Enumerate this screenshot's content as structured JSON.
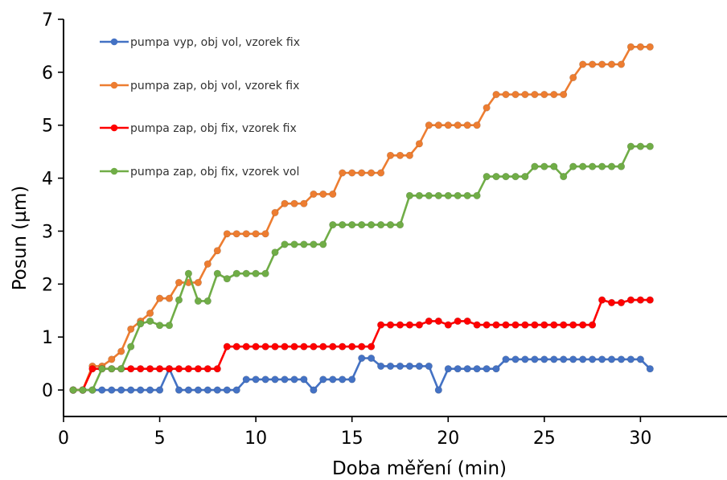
{
  "chart_data": {
    "type": "line",
    "xlabel": "Doba měření (min)",
    "ylabel": "Posun (µm)",
    "xlim": [
      0,
      34.5
    ],
    "ylim": [
      -0.5,
      7
    ],
    "xticks": [
      0,
      5,
      10,
      15,
      20,
      25,
      30
    ],
    "yticks": [
      0,
      1,
      2,
      3,
      4,
      5,
      6,
      7
    ],
    "grid": false,
    "legend_position": "top-left",
    "series": [
      {
        "name": "pumpa vyp, obj vol, vzorek fix",
        "color": "#4472c4",
        "points": [
          [
            0.5,
            0
          ],
          [
            1,
            0
          ],
          [
            1.5,
            0
          ],
          [
            2,
            0
          ],
          [
            2.5,
            0
          ],
          [
            3,
            0
          ],
          [
            3.5,
            0
          ],
          [
            4,
            0
          ],
          [
            4.5,
            0
          ],
          [
            5,
            0
          ],
          [
            5.5,
            0.4
          ],
          [
            6,
            0
          ],
          [
            6.5,
            0
          ],
          [
            7,
            0
          ],
          [
            7.5,
            0
          ],
          [
            8,
            0
          ],
          [
            8.5,
            0
          ],
          [
            9,
            0
          ],
          [
            9.5,
            0.2
          ],
          [
            10,
            0.2
          ],
          [
            10.5,
            0.2
          ],
          [
            11,
            0.2
          ],
          [
            11.5,
            0.2
          ],
          [
            12,
            0.2
          ],
          [
            12.5,
            0.2
          ],
          [
            13,
            0
          ],
          [
            13.5,
            0.2
          ],
          [
            14,
            0.2
          ],
          [
            14.5,
            0.2
          ],
          [
            15,
            0.2
          ],
          [
            15.5,
            0.6
          ],
          [
            16,
            0.6
          ],
          [
            16.5,
            0.45
          ],
          [
            17,
            0.45
          ],
          [
            17.5,
            0.45
          ],
          [
            18,
            0.45
          ],
          [
            18.5,
            0.45
          ],
          [
            19,
            0.45
          ],
          [
            19.5,
            0
          ],
          [
            20,
            0.4
          ],
          [
            20.5,
            0.4
          ],
          [
            21,
            0.4
          ],
          [
            21.5,
            0.4
          ],
          [
            22,
            0.4
          ],
          [
            22.5,
            0.4
          ],
          [
            23,
            0.58
          ],
          [
            23.5,
            0.58
          ],
          [
            24,
            0.58
          ],
          [
            24.5,
            0.58
          ],
          [
            25,
            0.58
          ],
          [
            25.5,
            0.58
          ],
          [
            26,
            0.58
          ],
          [
            26.5,
            0.58
          ],
          [
            27,
            0.58
          ],
          [
            27.5,
            0.58
          ],
          [
            28,
            0.58
          ],
          [
            28.5,
            0.58
          ],
          [
            29,
            0.58
          ],
          [
            29.5,
            0.58
          ],
          [
            30,
            0.58
          ],
          [
            30.5,
            0.4
          ]
        ]
      },
      {
        "name": "pumpa zap, obj vol, vzorek fix",
        "color": "#ed7d31",
        "points": [
          [
            0.5,
            0
          ],
          [
            1,
            0
          ],
          [
            1.5,
            0.45
          ],
          [
            2,
            0.45
          ],
          [
            2.5,
            0.58
          ],
          [
            3,
            0.73
          ],
          [
            3.5,
            1.15
          ],
          [
            4,
            1.3
          ],
          [
            4.5,
            1.45
          ],
          [
            5,
            1.73
          ],
          [
            5.5,
            1.73
          ],
          [
            6,
            2.03
          ],
          [
            6.5,
            2.03
          ],
          [
            7,
            2.03
          ],
          [
            7.5,
            2.38
          ],
          [
            8,
            2.63
          ],
          [
            8.5,
            2.95
          ],
          [
            9,
            2.95
          ],
          [
            9.5,
            2.95
          ],
          [
            10,
            2.95
          ],
          [
            10.5,
            2.95
          ],
          [
            11,
            3.35
          ],
          [
            11.5,
            3.52
          ],
          [
            12,
            3.52
          ],
          [
            12.5,
            3.52
          ],
          [
            13,
            3.7
          ],
          [
            13.5,
            3.7
          ],
          [
            14,
            3.7
          ],
          [
            14.5,
            4.1
          ],
          [
            15,
            4.1
          ],
          [
            15.5,
            4.1
          ],
          [
            16,
            4.1
          ],
          [
            16.5,
            4.1
          ],
          [
            17,
            4.43
          ],
          [
            17.5,
            4.43
          ],
          [
            18,
            4.43
          ],
          [
            18.5,
            4.65
          ],
          [
            19,
            5.0
          ],
          [
            19.5,
            5.0
          ],
          [
            20,
            5.0
          ],
          [
            20.5,
            5.0
          ],
          [
            21,
            5.0
          ],
          [
            21.5,
            5.0
          ],
          [
            22,
            5.33
          ],
          [
            22.5,
            5.58
          ],
          [
            23,
            5.58
          ],
          [
            23.5,
            5.58
          ],
          [
            24,
            5.58
          ],
          [
            24.5,
            5.58
          ],
          [
            25,
            5.58
          ],
          [
            25.5,
            5.58
          ],
          [
            26,
            5.58
          ],
          [
            26.5,
            5.9
          ],
          [
            27,
            6.15
          ],
          [
            27.5,
            6.15
          ],
          [
            28,
            6.15
          ],
          [
            28.5,
            6.15
          ],
          [
            29,
            6.15
          ],
          [
            29.5,
            6.48
          ],
          [
            30,
            6.48
          ],
          [
            30.5,
            6.48
          ]
        ]
      },
      {
        "name": "pumpa zap, obj fix, vzorek fix",
        "color": "#ff0000",
        "points": [
          [
            0.5,
            0
          ],
          [
            1,
            0
          ],
          [
            1.5,
            0.4
          ],
          [
            2,
            0.4
          ],
          [
            2.5,
            0.4
          ],
          [
            3,
            0.4
          ],
          [
            3.5,
            0.4
          ],
          [
            4,
            0.4
          ],
          [
            4.5,
            0.4
          ],
          [
            5,
            0.4
          ],
          [
            5.5,
            0.4
          ],
          [
            6,
            0.4
          ],
          [
            6.5,
            0.4
          ],
          [
            7,
            0.4
          ],
          [
            7.5,
            0.4
          ],
          [
            8,
            0.4
          ],
          [
            8.5,
            0.82
          ],
          [
            9,
            0.82
          ],
          [
            9.5,
            0.82
          ],
          [
            10,
            0.82
          ],
          [
            10.5,
            0.82
          ],
          [
            11,
            0.82
          ],
          [
            11.5,
            0.82
          ],
          [
            12,
            0.82
          ],
          [
            12.5,
            0.82
          ],
          [
            13,
            0.82
          ],
          [
            13.5,
            0.82
          ],
          [
            14,
            0.82
          ],
          [
            14.5,
            0.82
          ],
          [
            15,
            0.82
          ],
          [
            15.5,
            0.82
          ],
          [
            16,
            0.82
          ],
          [
            16.5,
            1.23
          ],
          [
            17,
            1.23
          ],
          [
            17.5,
            1.23
          ],
          [
            18,
            1.23
          ],
          [
            18.5,
            1.23
          ],
          [
            19,
            1.3
          ],
          [
            19.5,
            1.3
          ],
          [
            20,
            1.23
          ],
          [
            20.5,
            1.3
          ],
          [
            21,
            1.3
          ],
          [
            21.5,
            1.23
          ],
          [
            22,
            1.23
          ],
          [
            22.5,
            1.23
          ],
          [
            23,
            1.23
          ],
          [
            23.5,
            1.23
          ],
          [
            24,
            1.23
          ],
          [
            24.5,
            1.23
          ],
          [
            25,
            1.23
          ],
          [
            25.5,
            1.23
          ],
          [
            26,
            1.23
          ],
          [
            26.5,
            1.23
          ],
          [
            27,
            1.23
          ],
          [
            27.5,
            1.23
          ],
          [
            28,
            1.7
          ],
          [
            28.5,
            1.65
          ],
          [
            29,
            1.65
          ],
          [
            29.5,
            1.7
          ],
          [
            30,
            1.7
          ],
          [
            30.5,
            1.7
          ]
        ]
      },
      {
        "name": "pumpa zap, obj fix, vzorek vol",
        "color": "#70ad47",
        "points": [
          [
            0.5,
            0
          ],
          [
            1,
            0
          ],
          [
            1.5,
            0
          ],
          [
            2,
            0.4
          ],
          [
            2.5,
            0.4
          ],
          [
            3,
            0.4
          ],
          [
            3.5,
            0.82
          ],
          [
            4,
            1.25
          ],
          [
            4.5,
            1.3
          ],
          [
            5,
            1.22
          ],
          [
            5.5,
            1.22
          ],
          [
            6,
            1.7
          ],
          [
            6.5,
            2.2
          ],
          [
            7,
            1.68
          ],
          [
            7.5,
            1.68
          ],
          [
            8,
            2.2
          ],
          [
            8.5,
            2.1
          ],
          [
            9,
            2.2
          ],
          [
            9.5,
            2.2
          ],
          [
            10,
            2.2
          ],
          [
            10.5,
            2.2
          ],
          [
            11,
            2.6
          ],
          [
            11.5,
            2.75
          ],
          [
            12,
            2.75
          ],
          [
            12.5,
            2.75
          ],
          [
            13,
            2.75
          ],
          [
            13.5,
            2.75
          ],
          [
            14,
            3.12
          ],
          [
            14.5,
            3.12
          ],
          [
            15,
            3.12
          ],
          [
            15.5,
            3.12
          ],
          [
            16,
            3.12
          ],
          [
            16.5,
            3.12
          ],
          [
            17,
            3.12
          ],
          [
            17.5,
            3.12
          ],
          [
            18,
            3.67
          ],
          [
            18.5,
            3.67
          ],
          [
            19,
            3.67
          ],
          [
            19.5,
            3.67
          ],
          [
            20,
            3.67
          ],
          [
            20.5,
            3.67
          ],
          [
            21,
            3.67
          ],
          [
            21.5,
            3.67
          ],
          [
            22,
            4.03
          ],
          [
            22.5,
            4.03
          ],
          [
            23,
            4.03
          ],
          [
            23.5,
            4.03
          ],
          [
            24,
            4.03
          ],
          [
            24.5,
            4.22
          ],
          [
            25,
            4.22
          ],
          [
            25.5,
            4.22
          ],
          [
            26,
            4.03
          ],
          [
            26.5,
            4.22
          ],
          [
            27,
            4.22
          ],
          [
            27.5,
            4.22
          ],
          [
            28,
            4.22
          ],
          [
            28.5,
            4.22
          ],
          [
            29,
            4.22
          ],
          [
            29.5,
            4.6
          ],
          [
            30,
            4.6
          ],
          [
            30.5,
            4.6
          ]
        ]
      }
    ]
  }
}
